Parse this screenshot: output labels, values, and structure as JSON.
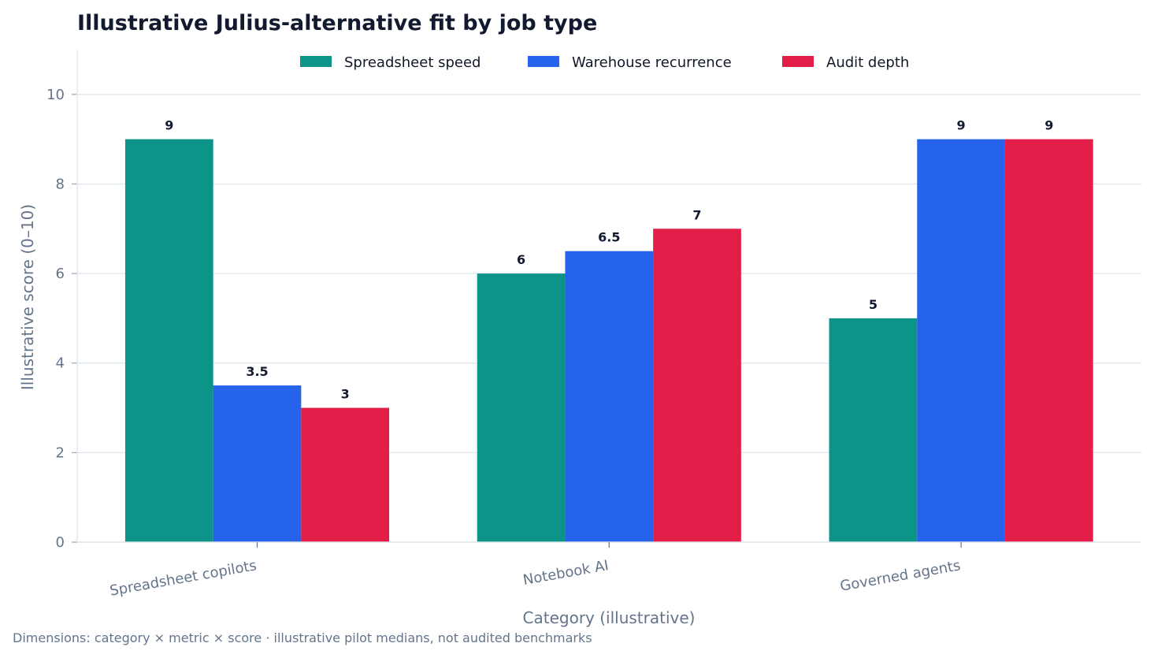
{
  "chart_data": {
    "type": "bar",
    "title": "Illustrative Julius-alternative fit by job type",
    "xlabel": "Category (illustrative)",
    "ylabel": "Illustrative score (0–10)",
    "categories": [
      "Spreadsheet copilots",
      "Notebook AI",
      "Governed agents"
    ],
    "series": [
      {
        "name": "Spreadsheet speed",
        "color": "#0d9488",
        "values": [
          9,
          6,
          5
        ],
        "labels": [
          "9",
          "6",
          "5"
        ]
      },
      {
        "name": "Warehouse recurrence",
        "color": "#2563eb",
        "values": [
          3.5,
          6.5,
          9
        ],
        "labels": [
          "3.5",
          "6.5",
          "9"
        ]
      },
      {
        "name": "Audit depth",
        "color": "#e11d48",
        "values": [
          3,
          7,
          9
        ],
        "labels": [
          "3",
          "7",
          "9"
        ]
      }
    ],
    "ylim": [
      0,
      11
    ],
    "yticks": [
      "0",
      "2",
      "4",
      "6",
      "8",
      "10"
    ],
    "grid": true,
    "legend": "top-center",
    "footnote": "Dimensions: category × metric × score · illustrative pilot medians, not audited benchmarks"
  }
}
